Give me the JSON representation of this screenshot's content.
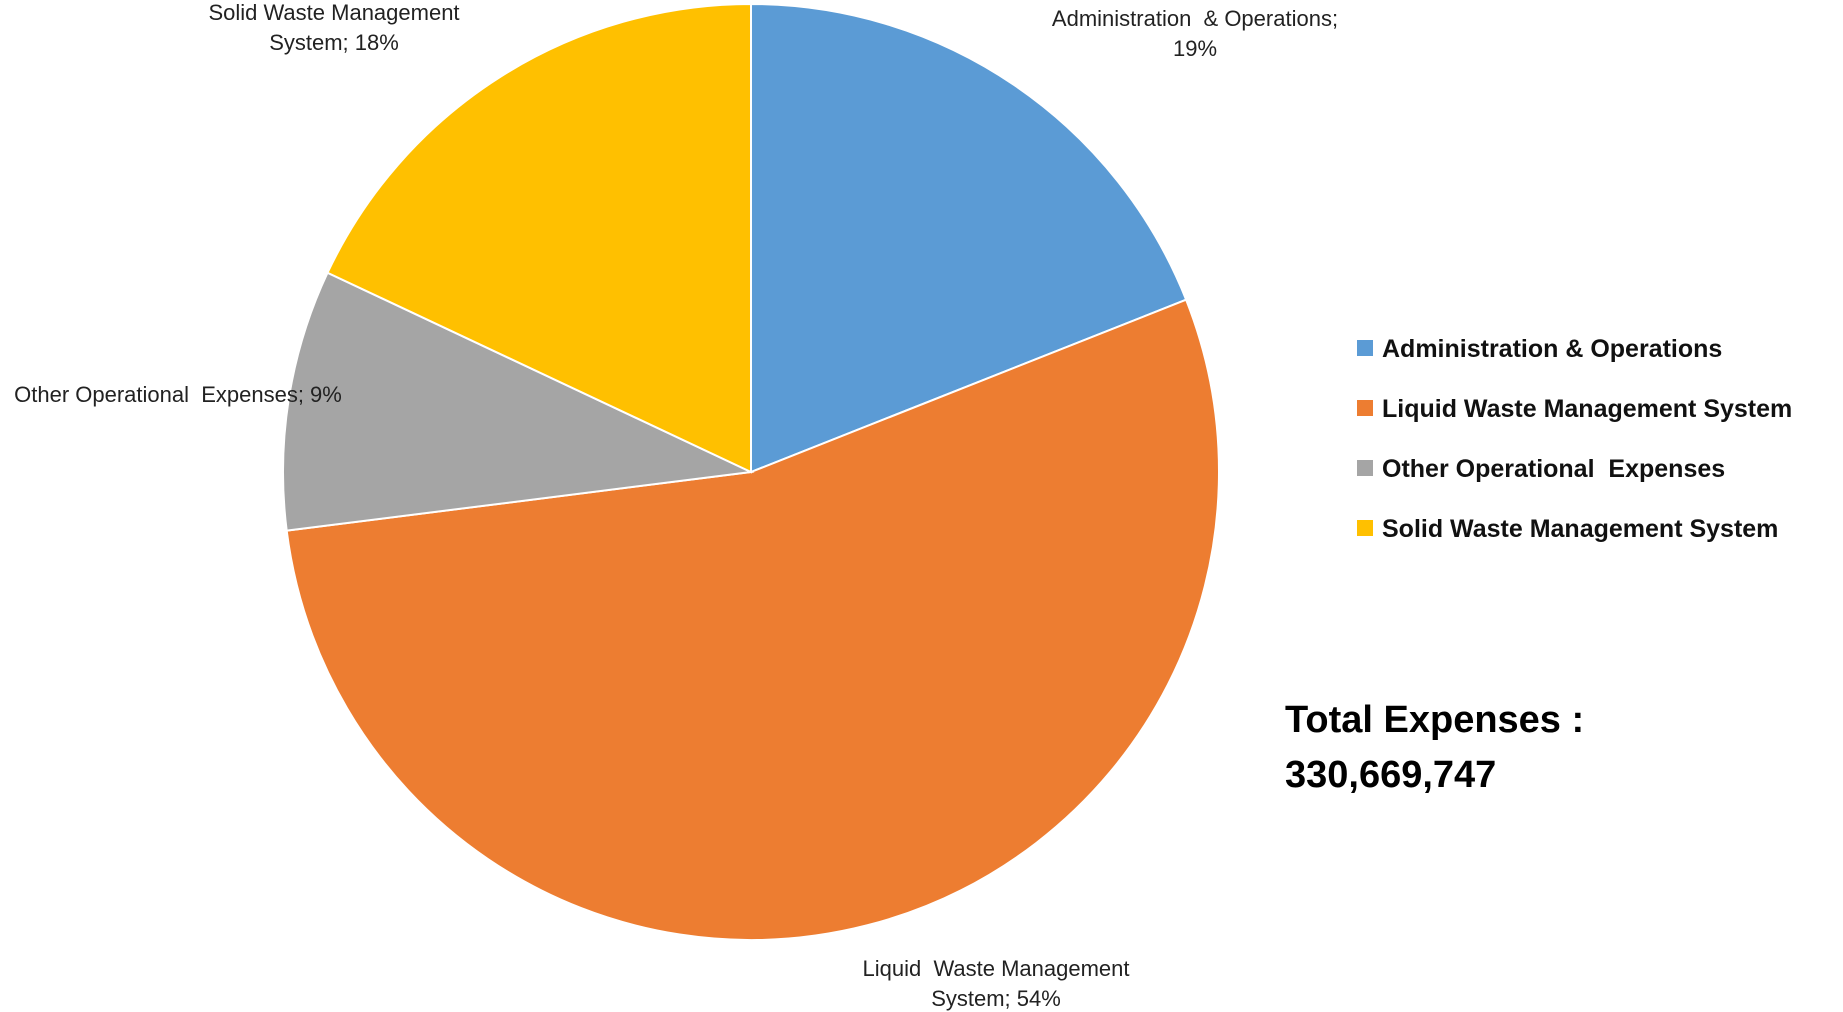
{
  "chart_data": {
    "type": "pie",
    "title": "",
    "start_angle_deg": 0,
    "direction": "clockwise",
    "slices": [
      {
        "name": "Administration & Operations",
        "value": 19,
        "color": "#5B9BD5",
        "label_lines": [
          "Administration  & Operations;",
          "19%"
        ]
      },
      {
        "name": "Liquid Waste Management System",
        "value": 54,
        "color": "#ED7D31",
        "label_lines": [
          "Liquid  Waste Management",
          "System; 54%"
        ]
      },
      {
        "name": "Other Operational Expenses",
        "value": 9,
        "color": "#A5A5A5",
        "label_lines": [
          "Other Operational  Expenses; 9%"
        ]
      },
      {
        "name": "Solid Waste Management System",
        "value": 18,
        "color": "#FFC000",
        "label_lines": [
          "Solid Waste Management",
          "System; 18%"
        ]
      }
    ],
    "legend": {
      "position": "right",
      "entries": [
        "Administration & Operations",
        "Liquid Waste Management System",
        "Other Operational  Expenses",
        "Solid Waste Management System"
      ]
    },
    "annotation": {
      "lines": [
        "Total Expenses :",
        "330,669,747"
      ]
    }
  }
}
